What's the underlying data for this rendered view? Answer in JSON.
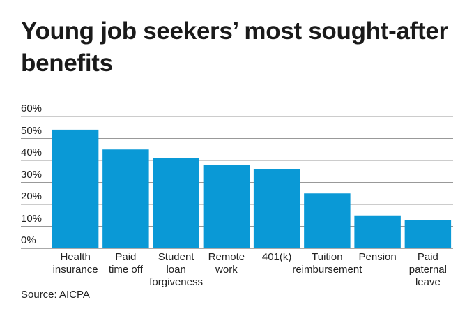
{
  "chart_data": {
    "type": "bar",
    "title": "Young job seekers’ most sought-after benefits",
    "source": "Source: AICPA",
    "categories": [
      "Health\ninsurance",
      "Paid\ntime off",
      "Student\nloan\nforgiveness",
      "Remote\nwork",
      "401(k)",
      "Tuition\nreimbursement",
      "Pension",
      "Paid\npaternal\nleave"
    ],
    "values": [
      54,
      45,
      41,
      38,
      36,
      25,
      15,
      13
    ],
    "color": "#0a99d6",
    "ylim": [
      0,
      60
    ],
    "yticks": [
      {
        "value": 0,
        "label": "0%"
      },
      {
        "value": 10,
        "label": "10%"
      },
      {
        "value": 20,
        "label": "20%"
      },
      {
        "value": 30,
        "label": "30%"
      },
      {
        "value": 40,
        "label": "40%"
      },
      {
        "value": 50,
        "label": "50%"
      },
      {
        "value": 60,
        "label": "60%"
      }
    ],
    "grid": true
  }
}
